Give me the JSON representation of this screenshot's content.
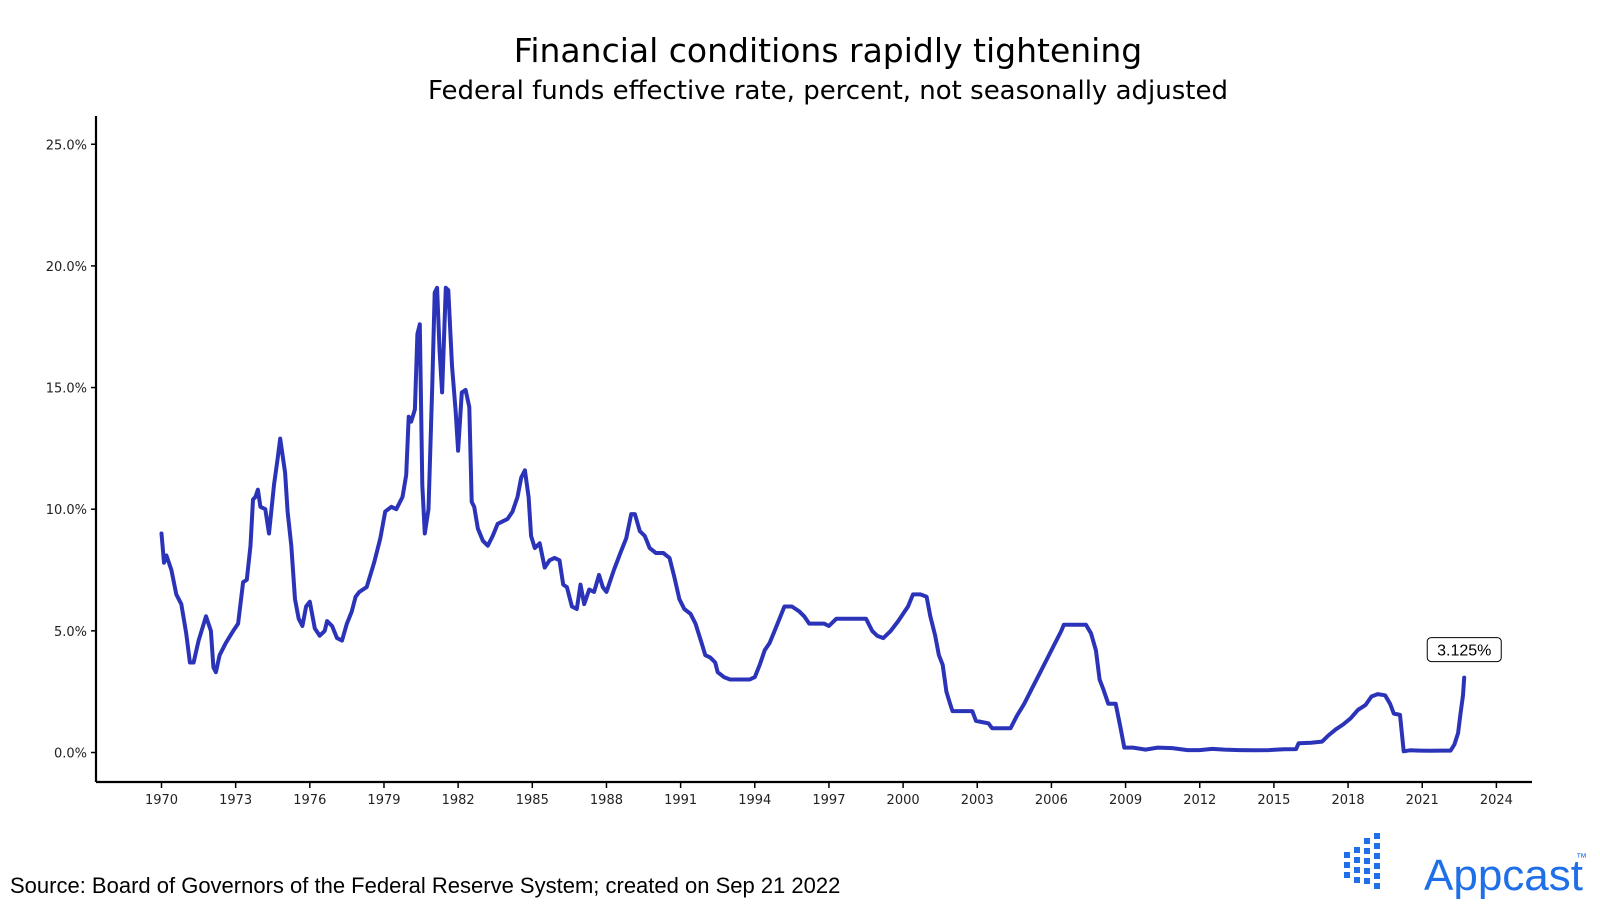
{
  "chart_data": {
    "type": "line",
    "title": "Financial conditions rapidly tightening",
    "subtitle": "Federal funds effective rate, percent, not seasonally adjusted",
    "xlabel": "",
    "ylabel": "",
    "xlim": [
      1969.8,
      2024.4
    ],
    "ylim": [
      -1.2,
      26.5
    ],
    "x_ticks": [
      1970,
      1973,
      1976,
      1979,
      1982,
      1985,
      1988,
      1991,
      1994,
      1997,
      2000,
      2003,
      2006,
      2009,
      2012,
      2015,
      2018,
      2021,
      2024
    ],
    "x_tick_labels": [
      "1970",
      "1973",
      "1976",
      "1979",
      "1982",
      "1985",
      "1988",
      "1991",
      "1994",
      "1997",
      "2000",
      "2003",
      "2006",
      "2009",
      "2012",
      "2015",
      "2018",
      "2021",
      "2024"
    ],
    "y_ticks": [
      0,
      5,
      10,
      15,
      20,
      25
    ],
    "y_tick_labels": [
      "0.0%",
      "5.0%",
      "10.0%",
      "15.0%",
      "20.0%",
      "25.0%"
    ],
    "grid": false,
    "legend": "none",
    "line_color": "#2b34b8",
    "series": [
      {
        "points": [
          [
            1970.0,
            9.0
          ],
          [
            1970.1,
            7.8
          ],
          [
            1970.2,
            8.1
          ],
          [
            1970.4,
            7.5
          ],
          [
            1970.6,
            6.5
          ],
          [
            1970.8,
            6.1
          ],
          [
            1971.0,
            4.9
          ],
          [
            1971.15,
            3.7
          ],
          [
            1971.3,
            3.7
          ],
          [
            1971.5,
            4.6
          ],
          [
            1971.8,
            5.6
          ],
          [
            1972.0,
            5.0
          ],
          [
            1972.1,
            3.5
          ],
          [
            1972.2,
            3.3
          ],
          [
            1972.35,
            4.0
          ],
          [
            1972.6,
            4.5
          ],
          [
            1972.9,
            5.0
          ],
          [
            1973.1,
            5.3
          ],
          [
            1973.3,
            7.0
          ],
          [
            1973.45,
            7.1
          ],
          [
            1973.6,
            8.5
          ],
          [
            1973.7,
            10.4
          ],
          [
            1973.8,
            10.5
          ],
          [
            1973.9,
            10.8
          ],
          [
            1974.0,
            10.1
          ],
          [
            1974.2,
            10.0
          ],
          [
            1974.35,
            9.0
          ],
          [
            1974.55,
            11.0
          ],
          [
            1974.7,
            12.1
          ],
          [
            1974.8,
            12.9
          ],
          [
            1975.0,
            11.5
          ],
          [
            1975.1,
            9.9
          ],
          [
            1975.25,
            8.5
          ],
          [
            1975.4,
            6.3
          ],
          [
            1975.55,
            5.5
          ],
          [
            1975.7,
            5.2
          ],
          [
            1975.85,
            6.0
          ],
          [
            1976.0,
            6.2
          ],
          [
            1976.2,
            5.1
          ],
          [
            1976.4,
            4.8
          ],
          [
            1976.6,
            5.0
          ],
          [
            1976.7,
            5.4
          ],
          [
            1976.9,
            5.2
          ],
          [
            1977.1,
            4.7
          ],
          [
            1977.3,
            4.6
          ],
          [
            1977.5,
            5.3
          ],
          [
            1977.7,
            5.8
          ],
          [
            1977.85,
            6.4
          ],
          [
            1978.0,
            6.6
          ],
          [
            1978.3,
            6.8
          ],
          [
            1978.6,
            7.8
          ],
          [
            1978.85,
            8.8
          ],
          [
            1979.05,
            9.9
          ],
          [
            1979.3,
            10.1
          ],
          [
            1979.5,
            10.0
          ],
          [
            1979.75,
            10.5
          ],
          [
            1979.9,
            11.4
          ],
          [
            1980.0,
            13.8
          ],
          [
            1980.1,
            13.6
          ],
          [
            1980.25,
            14.1
          ],
          [
            1980.35,
            17.2
          ],
          [
            1980.45,
            17.6
          ],
          [
            1980.55,
            11.0
          ],
          [
            1980.65,
            9.0
          ],
          [
            1980.8,
            10.0
          ],
          [
            1980.95,
            15.0
          ],
          [
            1981.05,
            18.9
          ],
          [
            1981.15,
            19.1
          ],
          [
            1981.25,
            16.5
          ],
          [
            1981.35,
            14.8
          ],
          [
            1981.5,
            19.1
          ],
          [
            1981.6,
            19.0
          ],
          [
            1981.75,
            15.9
          ],
          [
            1981.9,
            14.0
          ],
          [
            1982.0,
            12.4
          ],
          [
            1982.15,
            14.8
          ],
          [
            1982.3,
            14.9
          ],
          [
            1982.45,
            14.2
          ],
          [
            1982.55,
            10.3
          ],
          [
            1982.65,
            10.1
          ],
          [
            1982.8,
            9.2
          ],
          [
            1983.0,
            8.7
          ],
          [
            1983.2,
            8.5
          ],
          [
            1983.4,
            8.9
          ],
          [
            1983.6,
            9.4
          ],
          [
            1983.8,
            9.5
          ],
          [
            1984.0,
            9.6
          ],
          [
            1984.2,
            9.9
          ],
          [
            1984.4,
            10.5
          ],
          [
            1984.55,
            11.3
          ],
          [
            1984.7,
            11.6
          ],
          [
            1984.85,
            10.5
          ],
          [
            1984.95,
            8.9
          ],
          [
            1985.1,
            8.4
          ],
          [
            1985.3,
            8.6
          ],
          [
            1985.5,
            7.6
          ],
          [
            1985.7,
            7.9
          ],
          [
            1985.9,
            8.0
          ],
          [
            1986.1,
            7.9
          ],
          [
            1986.25,
            6.9
          ],
          [
            1986.4,
            6.8
          ],
          [
            1986.6,
            6.0
          ],
          [
            1986.8,
            5.9
          ],
          [
            1986.95,
            6.9
          ],
          [
            1987.1,
            6.1
          ],
          [
            1987.3,
            6.7
          ],
          [
            1987.5,
            6.6
          ],
          [
            1987.7,
            7.3
          ],
          [
            1987.85,
            6.8
          ],
          [
            1988.0,
            6.6
          ],
          [
            1988.3,
            7.5
          ],
          [
            1988.6,
            8.3
          ],
          [
            1988.8,
            8.8
          ],
          [
            1989.0,
            9.8
          ],
          [
            1989.15,
            9.8
          ],
          [
            1989.35,
            9.1
          ],
          [
            1989.55,
            8.9
          ],
          [
            1989.75,
            8.4
          ],
          [
            1990.0,
            8.2
          ],
          [
            1990.3,
            8.2
          ],
          [
            1990.55,
            8.0
          ],
          [
            1990.75,
            7.2
          ],
          [
            1990.95,
            6.3
          ],
          [
            1991.15,
            5.9
          ],
          [
            1991.4,
            5.7
          ],
          [
            1991.6,
            5.3
          ],
          [
            1991.85,
            4.5
          ],
          [
            1992.0,
            4.0
          ],
          [
            1992.2,
            3.9
          ],
          [
            1992.4,
            3.7
          ],
          [
            1992.5,
            3.3
          ],
          [
            1992.75,
            3.1
          ],
          [
            1993.0,
            3.0
          ],
          [
            1993.3,
            3.0
          ],
          [
            1993.55,
            3.0
          ],
          [
            1993.8,
            3.0
          ],
          [
            1994.0,
            3.1
          ],
          [
            1994.2,
            3.6
          ],
          [
            1994.4,
            4.2
          ],
          [
            1994.6,
            4.5
          ],
          [
            1994.8,
            5.0
          ],
          [
            1995.0,
            5.5
          ],
          [
            1995.2,
            6.0
          ],
          [
            1995.5,
            6.0
          ],
          [
            1995.8,
            5.8
          ],
          [
            1996.0,
            5.6
          ],
          [
            1996.2,
            5.3
          ],
          [
            1996.5,
            5.3
          ],
          [
            1996.8,
            5.3
          ],
          [
            1997.0,
            5.2
          ],
          [
            1997.3,
            5.5
          ],
          [
            1997.6,
            5.5
          ],
          [
            1997.9,
            5.5
          ],
          [
            1998.2,
            5.5
          ],
          [
            1998.5,
            5.5
          ],
          [
            1998.75,
            5.0
          ],
          [
            1998.95,
            4.8
          ],
          [
            1999.2,
            4.7
          ],
          [
            1999.5,
            5.0
          ],
          [
            1999.8,
            5.4
          ],
          [
            2000.0,
            5.7
          ],
          [
            2000.2,
            6.0
          ],
          [
            2000.4,
            6.5
          ],
          [
            2000.7,
            6.5
          ],
          [
            2000.95,
            6.4
          ],
          [
            2001.1,
            5.6
          ],
          [
            2001.3,
            4.8
          ],
          [
            2001.45,
            4.0
          ],
          [
            2001.6,
            3.6
          ],
          [
            2001.75,
            2.5
          ],
          [
            2001.9,
            2.0
          ],
          [
            2002.0,
            1.7
          ],
          [
            2002.4,
            1.7
          ],
          [
            2002.8,
            1.7
          ],
          [
            2002.95,
            1.3
          ],
          [
            2003.2,
            1.25
          ],
          [
            2003.45,
            1.2
          ],
          [
            2003.6,
            1.0
          ],
          [
            2004.0,
            1.0
          ],
          [
            2004.35,
            1.0
          ],
          [
            2004.6,
            1.5
          ],
          [
            2004.9,
            2.0
          ],
          [
            2005.2,
            2.6
          ],
          [
            2005.5,
            3.2
          ],
          [
            2005.8,
            3.8
          ],
          [
            2006.1,
            4.4
          ],
          [
            2006.4,
            5.0
          ],
          [
            2006.5,
            5.25
          ],
          [
            2007.0,
            5.25
          ],
          [
            2007.4,
            5.25
          ],
          [
            2007.6,
            4.9
          ],
          [
            2007.8,
            4.2
          ],
          [
            2007.95,
            3.0
          ],
          [
            2008.1,
            2.6
          ],
          [
            2008.3,
            2.0
          ],
          [
            2008.6,
            2.0
          ],
          [
            2008.8,
            1.0
          ],
          [
            2008.95,
            0.2
          ],
          [
            2009.3,
            0.2
          ],
          [
            2009.8,
            0.12
          ],
          [
            2010.3,
            0.2
          ],
          [
            2010.9,
            0.18
          ],
          [
            2011.5,
            0.1
          ],
          [
            2012.0,
            0.1
          ],
          [
            2012.5,
            0.15
          ],
          [
            2013.0,
            0.12
          ],
          [
            2013.6,
            0.1
          ],
          [
            2014.2,
            0.09
          ],
          [
            2014.8,
            0.1
          ],
          [
            2015.4,
            0.13
          ],
          [
            2015.9,
            0.14
          ],
          [
            2016.0,
            0.38
          ],
          [
            2016.5,
            0.4
          ],
          [
            2016.95,
            0.45
          ],
          [
            2017.2,
            0.7
          ],
          [
            2017.5,
            0.95
          ],
          [
            2017.8,
            1.15
          ],
          [
            2018.1,
            1.4
          ],
          [
            2018.4,
            1.75
          ],
          [
            2018.7,
            1.95
          ],
          [
            2018.95,
            2.3
          ],
          [
            2019.2,
            2.4
          ],
          [
            2019.5,
            2.35
          ],
          [
            2019.7,
            2.0
          ],
          [
            2019.85,
            1.6
          ],
          [
            2020.1,
            1.55
          ],
          [
            2020.25,
            0.05
          ],
          [
            2020.5,
            0.09
          ],
          [
            2020.9,
            0.08
          ],
          [
            2021.3,
            0.07
          ],
          [
            2021.8,
            0.08
          ],
          [
            2022.15,
            0.08
          ],
          [
            2022.3,
            0.33
          ],
          [
            2022.45,
            0.8
          ],
          [
            2022.55,
            1.6
          ],
          [
            2022.65,
            2.35
          ],
          [
            2022.7,
            3.08
          ]
        ]
      }
    ],
    "annotation": {
      "text": "3.125%",
      "x": 2022.7,
      "y": 3.08
    }
  },
  "source": "Source: Board of Governors of the Federal Reserve System; created on Sep 21 2022",
  "logo": {
    "text": "Appcast",
    "trademark": "™",
    "color": "#1f6fe8"
  }
}
